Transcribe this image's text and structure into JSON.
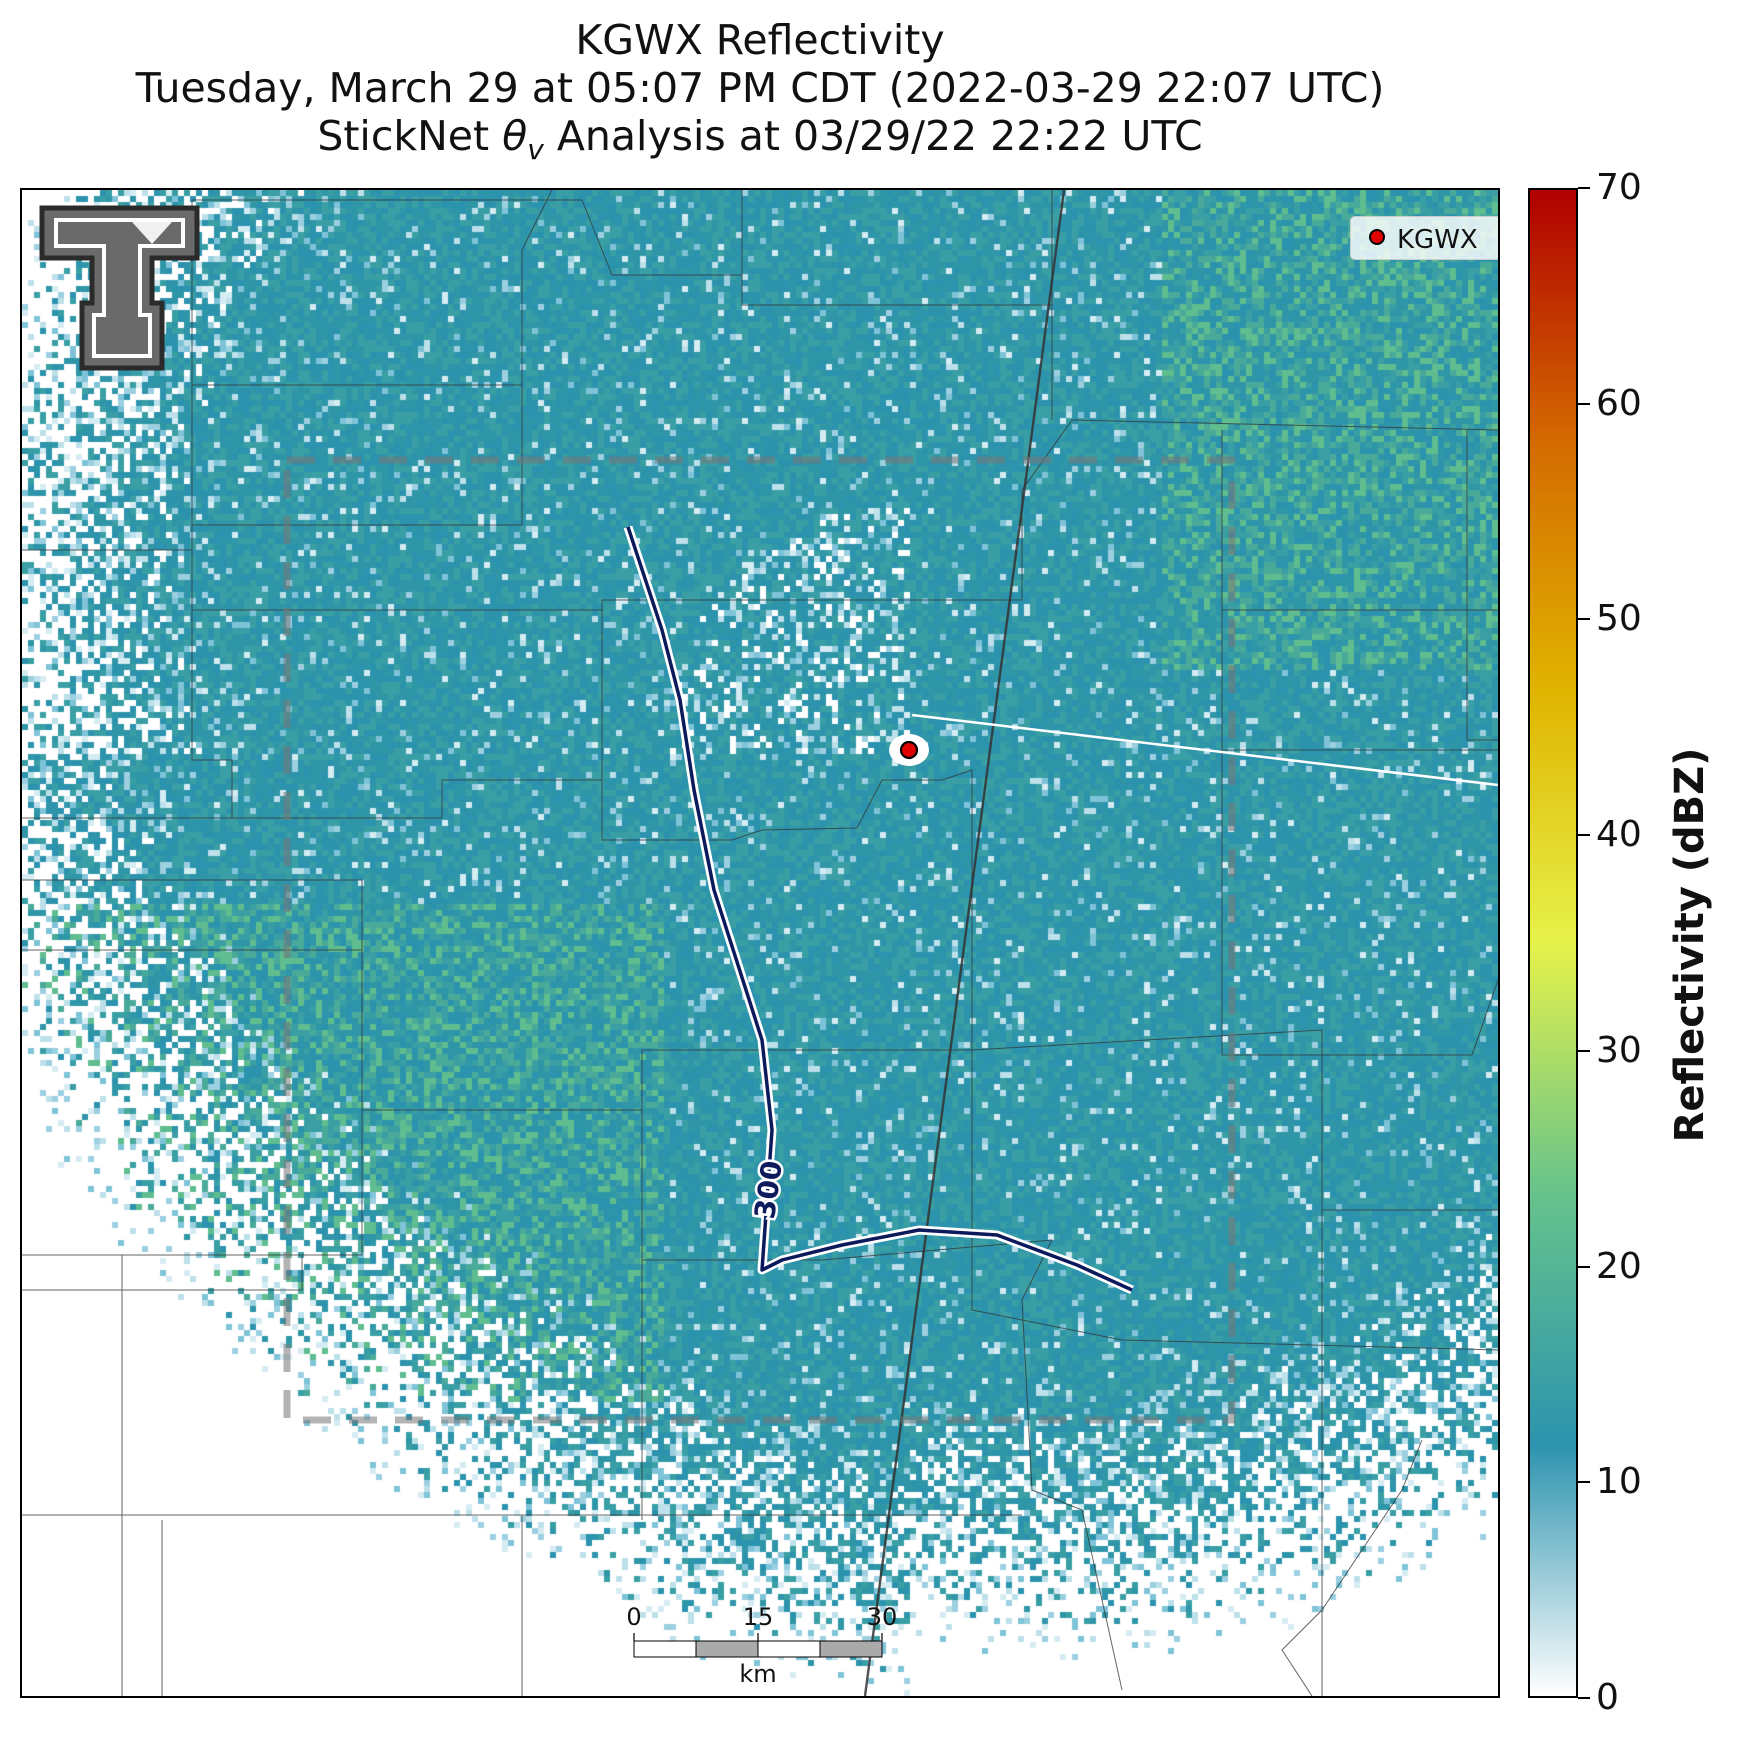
{
  "title": {
    "line1": "KGWX Reflectivity",
    "line2": "Tuesday, March 29 at 05:07 PM CDT (2022-03-29 22:07 UTC)",
    "line3_prefix": "StickNet ",
    "line3_theta": "θ",
    "line3_sub": "v",
    "line3_suffix": " Analysis at 03/29/22 22:22 UTC"
  },
  "legend": {
    "label": "KGWX"
  },
  "contour": {
    "label": "300"
  },
  "scalebar": {
    "ticks": [
      "0",
      "15",
      "30"
    ],
    "unit": "km"
  },
  "colorbar": {
    "label": "Reflectivity (dBZ)",
    "min": 0,
    "max": 70,
    "ticks": [
      "0",
      "10",
      "20",
      "30",
      "40",
      "50",
      "60",
      "70"
    ],
    "colors": [
      "#ffffff",
      "#2c93ae",
      "#66c38c",
      "#e6f24a",
      "#e0b400",
      "#d46a00",
      "#b00000"
    ]
  },
  "colors": {
    "radar_primary": "#2c93ae",
    "radar_light": "#9cd0e0",
    "radar_green": "#5fbd8f",
    "contour": "#0c1a5c",
    "radar_site": "#e00000"
  },
  "icons": {
    "logo": "texas-tech-double-t-logo"
  }
}
